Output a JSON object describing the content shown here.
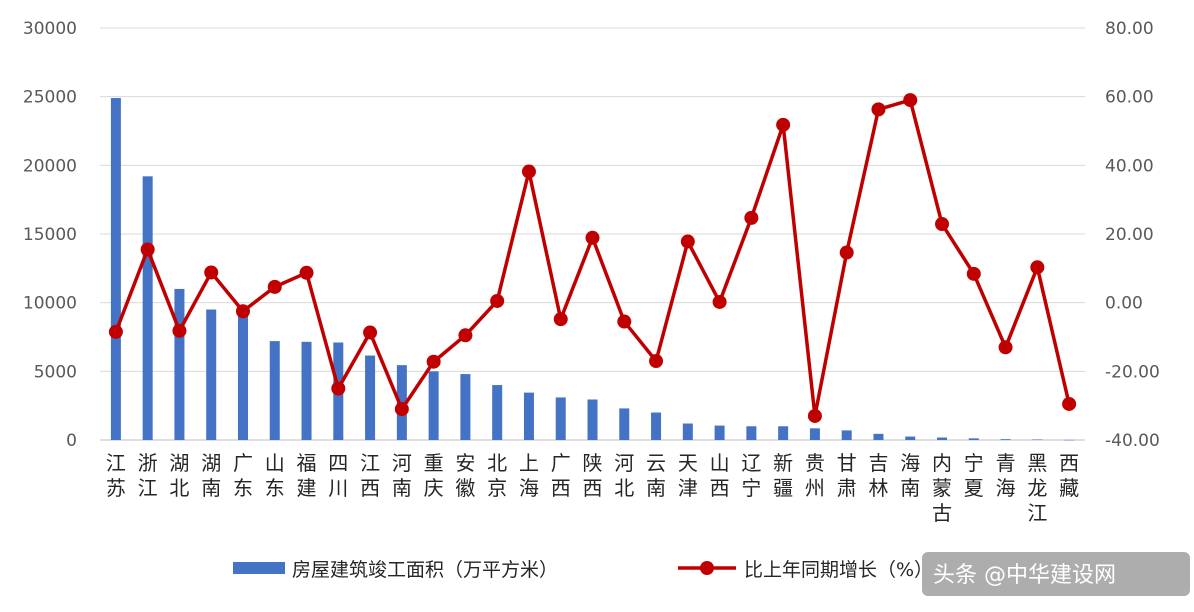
{
  "chart_data": {
    "type": "bar",
    "categories": [
      "江苏",
      "浙江",
      "湖北",
      "湖南",
      "广东",
      "山东",
      "福建",
      "四川",
      "江西",
      "河南",
      "重庆",
      "安徽",
      "北京",
      "上海",
      "广西",
      "陕西",
      "河北",
      "云南",
      "天津",
      "山西",
      "辽宁",
      "新疆",
      "贵州",
      "甘肃",
      "吉林",
      "海南",
      "内蒙古",
      "宁夏",
      "青海",
      "黑龙江",
      "西藏"
    ],
    "series": [
      {
        "name": "房屋建筑竣工面积（万平方米）",
        "type": "bar",
        "axis": "left",
        "color": "#4472C4",
        "values": [
          24900,
          19200,
          11000,
          9500,
          9300,
          7200,
          7150,
          7100,
          6150,
          5450,
          5000,
          4800,
          4000,
          3450,
          3100,
          2950,
          2300,
          2000,
          1200,
          1050,
          1000,
          1000,
          850,
          700,
          450,
          250,
          180,
          120,
          60,
          40,
          10
        ]
      },
      {
        "name": "比上年同期增长（%）",
        "type": "line",
        "axis": "right",
        "color": "#C00000",
        "values": [
          -8.5,
          15.5,
          -8.2,
          8.8,
          -2.5,
          4.6,
          8.7,
          -25.0,
          -8.7,
          -31.0,
          -17.2,
          -9.5,
          0.5,
          38.2,
          -4.8,
          18.9,
          -5.5,
          -17.0,
          17.8,
          0.2,
          24.7,
          51.8,
          -33.0,
          14.6,
          56.3,
          59.0,
          22.9,
          8.4,
          -13.0,
          10.3,
          -29.5
        ]
      }
    ],
    "y_left": {
      "ylim": [
        0,
        30000
      ],
      "ticks": [
        "0",
        "5000",
        "10000",
        "15000",
        "20000",
        "25000",
        "30000"
      ]
    },
    "y_right": {
      "ylim": [
        -40,
        80
      ],
      "ticks": [
        "-40.00",
        "-20.00",
        "0.00",
        "20.00",
        "40.00",
        "60.00",
        "80.00"
      ]
    },
    "grid": true,
    "legend_position": "bottom",
    "title": "",
    "xlabel": "",
    "ylabel": ""
  },
  "watermark": "头条 @中华建设网"
}
